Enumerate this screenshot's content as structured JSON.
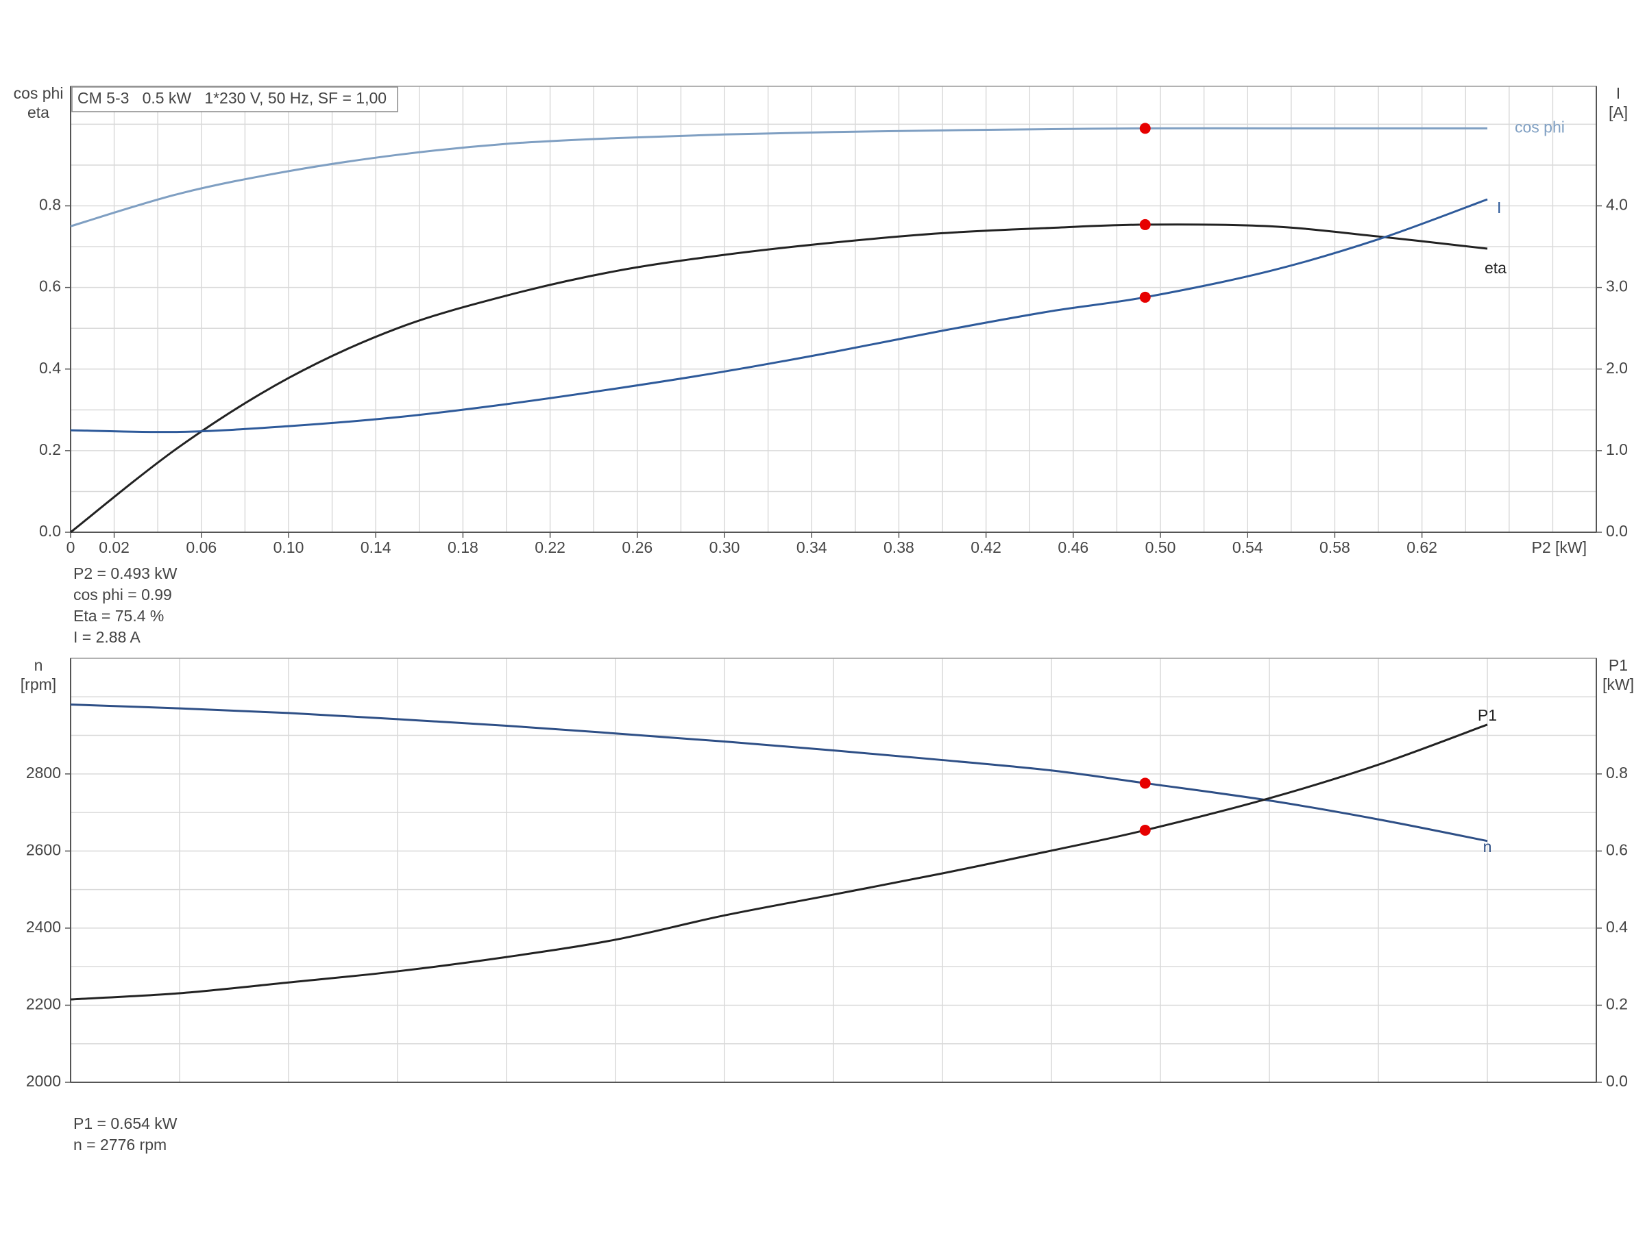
{
  "chart_data": [
    {
      "type": "line",
      "title": "CM 5-3   0.5 kW   1*230 V, 50 Hz, SF = 1,00",
      "ylabel_lines": [
        "cos phi",
        "eta"
      ],
      "y2label_lines": [
        "I",
        "[A]"
      ],
      "xlabel": "P2 [kW]",
      "xlim": [
        0,
        0.7
      ],
      "xticks": [
        0,
        0.02,
        0.06,
        {
          "value": 0.1,
          "label": "0.10"
        },
        0.14,
        0.18,
        0.22,
        0.26,
        {
          "value": 0.3,
          "label": "0.30"
        },
        0.34,
        0.38,
        0.42,
        0.46,
        {
          "value": 0.5,
          "label": "0.50"
        },
        0.54,
        0.58,
        0.62
      ],
      "xgrid": [
        0.02,
        0.04,
        0.06,
        0.08,
        0.1,
        0.12,
        0.14,
        0.16,
        0.18,
        0.2,
        0.22,
        0.24,
        0.26,
        0.28,
        0.3,
        0.32,
        0.34,
        0.36,
        0.38,
        0.4,
        0.42,
        0.44,
        0.46,
        0.48,
        0.5,
        0.52,
        0.54,
        0.56,
        0.58,
        0.6,
        0.62,
        0.64,
        0.66,
        0.68
      ],
      "ylim": [
        0,
        1.093
      ],
      "yticks": [
        {
          "value": 0,
          "label": "0.0"
        },
        0.2,
        0.4,
        0.6,
        0.8
      ],
      "ygrid": [
        0.1,
        0.2,
        0.3,
        0.4,
        0.5,
        0.6,
        0.7,
        0.8,
        0.9,
        1.0
      ],
      "y2lim": [
        0,
        5.465
      ],
      "y2ticks": [
        {
          "value": 0,
          "label": "0.0"
        },
        {
          "value": 1,
          "label": "1.0"
        },
        {
          "value": 2,
          "label": "2.0"
        },
        {
          "value": 3,
          "label": "3.0"
        },
        {
          "value": 4,
          "label": "4.0"
        }
      ],
      "grid": true,
      "x": [
        0,
        0.05,
        0.1,
        0.15,
        0.2,
        0.25,
        0.3,
        0.35,
        0.4,
        0.45,
        0.493,
        0.55,
        0.6,
        0.65
      ],
      "series": [
        {
          "name": "cos phi",
          "color": "#7f9fc2",
          "values": [
            0.75,
            0.83,
            0.885,
            0.925,
            0.952,
            0.966,
            0.975,
            0.981,
            0.985,
            0.988,
            0.99,
            0.99,
            0.99,
            0.99
          ]
        },
        {
          "name": "eta",
          "color": "#222222",
          "values": [
            0,
            0.21,
            0.378,
            0.5,
            0.58,
            0.64,
            0.68,
            0.71,
            0.733,
            0.746,
            0.754,
            0.75,
            0.725,
            0.695
          ]
        },
        {
          "name": "I",
          "color": "#2e5a9a",
          "axis": "y2",
          "values": [
            1.25,
            1.23,
            1.3,
            1.41,
            1.57,
            1.76,
            1.97,
            2.21,
            2.47,
            2.71,
            2.88,
            3.2,
            3.59,
            4.08
          ]
        }
      ],
      "operating_point": {
        "x": 0.493,
        "color": "#e60000",
        "values": [
          0.99,
          0.754,
          2.88
        ]
      },
      "annotations": [
        "P2 = 0.493 kW",
        "cos phi = 0.99",
        "Eta = 75.4 %",
        "I = 2.88 A"
      ]
    },
    {
      "type": "line",
      "ylabel_lines": [
        "n",
        "[rpm]"
      ],
      "y2label_lines": [
        "P1",
        "[kW]"
      ],
      "xlim": [
        0,
        0.7
      ],
      "xgrid": [
        0.05,
        0.1,
        0.15,
        0.2,
        0.25,
        0.3,
        0.35,
        0.4,
        0.45,
        0.5,
        0.55,
        0.6,
        0.65
      ],
      "ylim": [
        2000,
        3100
      ],
      "yticks": [
        2000,
        2200,
        2400,
        2600,
        2800
      ],
      "ygrid": [
        2100,
        2200,
        2300,
        2400,
        2500,
        2600,
        2700,
        2800,
        2900,
        3000
      ],
      "y2lim": [
        0,
        1.1
      ],
      "y2ticks": [
        {
          "value": 0,
          "label": "0.0"
        },
        0.2,
        0.4,
        0.6,
        0.8
      ],
      "grid": true,
      "x": [
        0,
        0.05,
        0.1,
        0.15,
        0.2,
        0.25,
        0.3,
        0.35,
        0.4,
        0.45,
        0.493,
        0.55,
        0.6,
        0.65
      ],
      "series": [
        {
          "name": "n",
          "color": "#2e4f86",
          "values": [
            2980,
            2970,
            2958,
            2942,
            2925,
            2905,
            2884,
            2861,
            2836,
            2809,
            2776,
            2731,
            2682,
            2626
          ]
        },
        {
          "name": "P1",
          "color": "#222222",
          "axis": "y2",
          "values": [
            0.215,
            0.231,
            0.259,
            0.288,
            0.325,
            0.37,
            0.433,
            0.487,
            0.542,
            0.601,
            0.654,
            0.737,
            0.824,
            0.928
          ]
        }
      ],
      "operating_point": {
        "x": 0.493,
        "color": "#e60000",
        "values": [
          2776,
          0.654
        ]
      },
      "annotations": [
        "P1 = 0.654 kW",
        "n = 2776 rpm"
      ]
    }
  ]
}
